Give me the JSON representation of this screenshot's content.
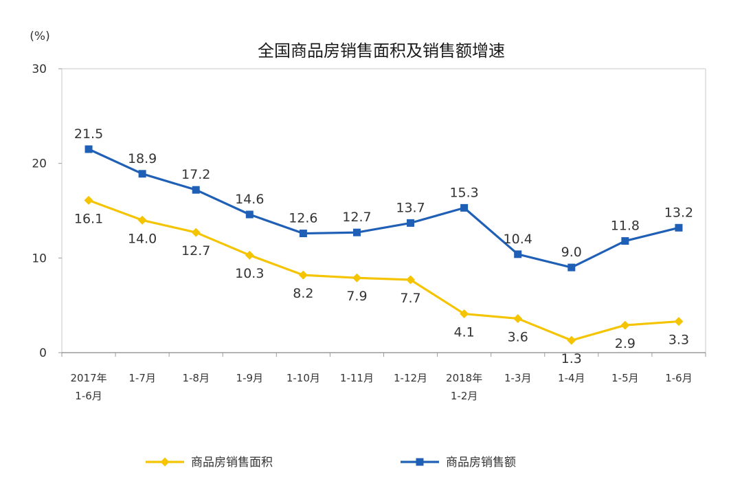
{
  "chart_data": {
    "type": "line",
    "title": "全国商品房销售面积及销售额增速",
    "unit": "(%)",
    "categories": [
      [
        "2017年",
        "1-6月"
      ],
      [
        "1-7月"
      ],
      [
        "1-8月"
      ],
      [
        "1-9月"
      ],
      [
        "1-10月"
      ],
      [
        "1-11月"
      ],
      [
        "1-12月"
      ],
      [
        "2018年",
        "1-2月"
      ],
      [
        "1-3月"
      ],
      [
        "1-4月"
      ],
      [
        "1-5月"
      ],
      [
        "1-6月"
      ]
    ],
    "ylim": [
      0,
      30
    ],
    "yticks": [
      "0",
      "10",
      "20",
      "30"
    ],
    "grid": false,
    "legend_position": "bottom",
    "series": [
      {
        "name": "商品房销售面积",
        "color": "#f5c400",
        "marker": "diamond",
        "values": [
          16.1,
          14.0,
          12.7,
          10.3,
          8.2,
          7.9,
          7.7,
          4.1,
          3.6,
          1.3,
          2.9,
          3.3
        ],
        "labels": [
          "16.1",
          "14.0",
          "12.7",
          "10.3",
          "8.2",
          "7.9",
          "7.7",
          "4.1",
          "3.6",
          "1.3",
          "2.9",
          "3.3"
        ]
      },
      {
        "name": "商品房销售额",
        "color": "#1f5fb5",
        "marker": "square",
        "values": [
          21.5,
          18.9,
          17.2,
          14.6,
          12.6,
          12.7,
          13.7,
          15.3,
          10.4,
          9.0,
          11.8,
          13.2
        ],
        "labels": [
          "21.5",
          "18.9",
          "17.2",
          "14.6",
          "12.6",
          "12.7",
          "13.7",
          "15.3",
          "10.4",
          "9.0",
          "11.8",
          "13.2"
        ]
      }
    ]
  }
}
